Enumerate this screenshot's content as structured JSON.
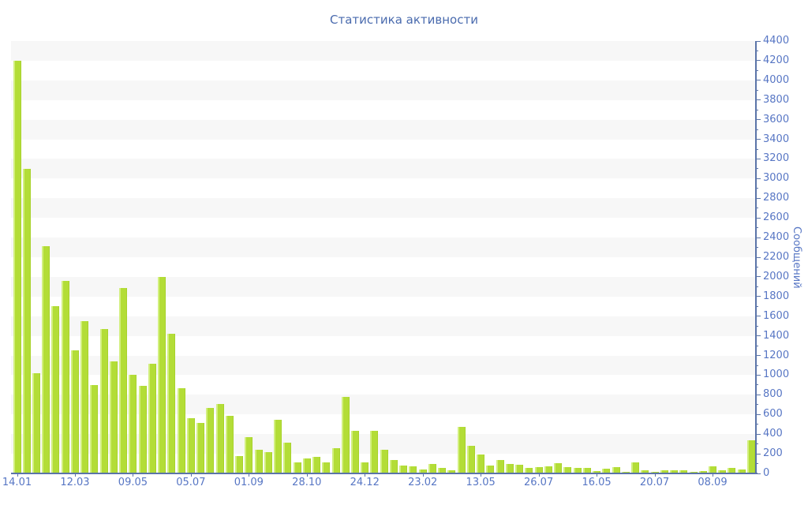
{
  "title": "Статистика активности",
  "chart_data": {
    "type": "bar",
    "title": "Статистика активности",
    "xlabel": "",
    "ylabel": "Сообщений",
    "ylim": [
      0,
      4400
    ],
    "ytick_step": 200,
    "ytick_minor_step": 100,
    "grid": "striped-bands",
    "legend": "none",
    "axis_side": "right",
    "bar_color": "#b3dd37",
    "bar_highlight_color": "#d2ef7e",
    "axis_line_color": "#5b74a8",
    "tick_label_color": "#5776c4",
    "title_color": "#4a6bae",
    "stripe_color": "#f7f7f7",
    "x_tick_labels": [
      "14.01",
      "12.03",
      "09.05",
      "05.07",
      "01.09",
      "28.10",
      "24.12",
      "23.02",
      "13.05",
      "26.07",
      "16.05",
      "20.07",
      "08.09"
    ],
    "x_tick_every": 6,
    "values": [
      4200,
      3100,
      1020,
      2315,
      1700,
      1960,
      1250,
      1550,
      900,
      1470,
      1140,
      1890,
      1000,
      890,
      1120,
      2000,
      1420,
      870,
      560,
      515,
      670,
      710,
      590,
      180,
      370,
      240,
      220,
      550,
      310,
      115,
      150,
      165,
      115,
      255,
      775,
      435,
      115,
      430,
      240,
      135,
      80,
      75,
      40,
      95,
      55,
      30,
      475,
      280,
      195,
      80,
      140,
      100,
      90,
      60,
      65,
      75,
      105,
      65,
      55,
      60,
      25,
      45,
      65,
      20,
      110,
      35,
      20,
      35,
      30,
      35,
      20,
      25,
      75,
      35,
      60,
      40,
      335
    ]
  }
}
